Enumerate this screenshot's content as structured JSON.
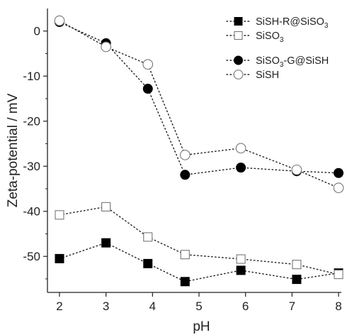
{
  "chart_data": {
    "type": "line",
    "xlabel": "pH",
    "ylabel": "Zeta-potential / mV",
    "xlim": [
      2,
      8
    ],
    "ylim": [
      -58,
      5
    ],
    "x_ticks": [
      "2",
      "3",
      "4",
      "5",
      "6",
      "7",
      "8"
    ],
    "y_ticks": [
      "0",
      "-10",
      "-20",
      "-30",
      "-40",
      "-50"
    ],
    "grid": false,
    "legend_position": "top-right",
    "series": [
      {
        "name_main": "SiSH-R@SiSO",
        "name_sub": "3",
        "marker": "square-filled",
        "x": [
          2.0,
          3.0,
          3.9,
          4.7,
          5.9,
          7.1,
          8.0
        ],
        "y": [
          -50.5,
          -47.0,
          -51.6,
          -55.6,
          -53.1,
          -55.1,
          -53.7
        ]
      },
      {
        "name_main": "SiSO",
        "name_sub": "3",
        "marker": "square-open",
        "x": [
          2.0,
          3.0,
          3.9,
          4.7,
          5.9,
          7.1,
          8.0
        ],
        "y": [
          -40.8,
          -39.0,
          -45.7,
          -49.6,
          -50.6,
          -51.8,
          -54.0
        ]
      },
      {
        "name_main": "SiSO",
        "name_sub": "3",
        "name_tail": "-G@SiSH",
        "marker": "circle-filled",
        "x": [
          2.0,
          3.0,
          3.9,
          4.7,
          5.9,
          7.1,
          8.0
        ],
        "y": [
          2.0,
          -2.7,
          -12.8,
          -31.9,
          -30.3,
          -31.1,
          -31.5
        ]
      },
      {
        "name_main": "SiSH",
        "name_sub": "",
        "marker": "circle-open",
        "x": [
          2.0,
          3.0,
          3.9,
          4.7,
          5.9,
          7.1,
          8.0
        ],
        "y": [
          2.3,
          -3.5,
          -7.4,
          -27.5,
          -26.0,
          -30.8,
          -34.8
        ]
      }
    ]
  }
}
